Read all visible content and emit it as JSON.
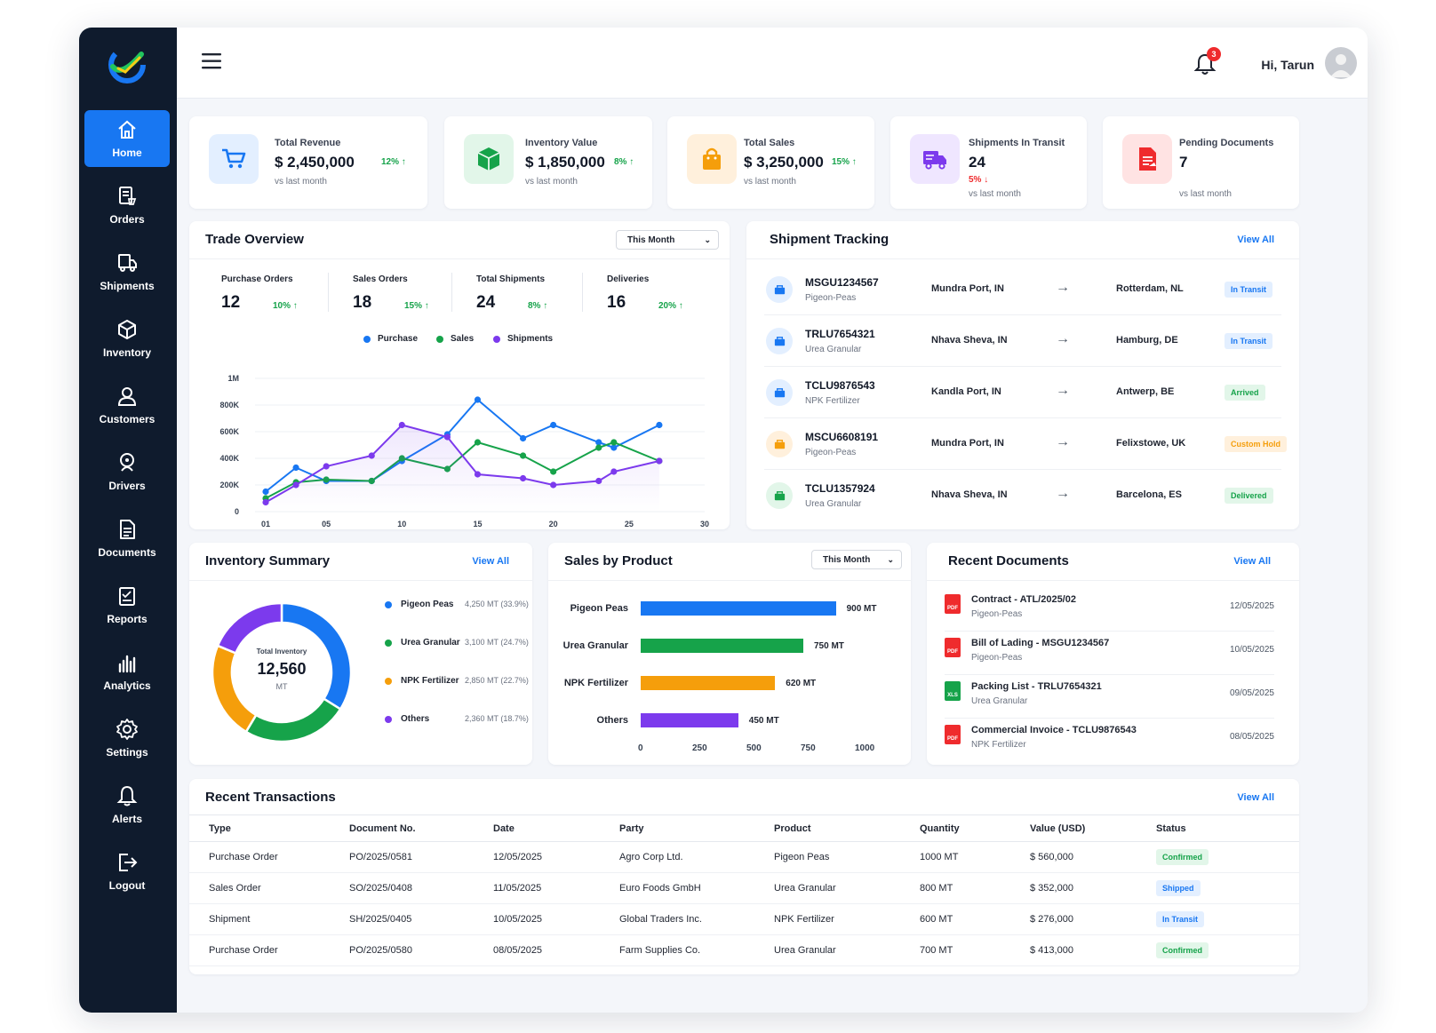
{
  "user": {
    "greeting": "Hi, Tarun",
    "notifications": "3"
  },
  "sidebar": [
    {
      "label": "Home",
      "icon": "home-icon"
    },
    {
      "label": "Orders",
      "icon": "orders-icon"
    },
    {
      "label": "Shipments",
      "icon": "truck-icon"
    },
    {
      "label": "Inventory",
      "icon": "box-icon"
    },
    {
      "label": "Customers",
      "icon": "user-icon"
    },
    {
      "label": "Drivers",
      "icon": "driver-icon"
    },
    {
      "label": "Documents",
      "icon": "document-icon"
    },
    {
      "label": "Reports",
      "icon": "report-icon"
    },
    {
      "label": "Analytics",
      "icon": "analytics-icon"
    },
    {
      "label": "Settings",
      "icon": "gear-icon"
    },
    {
      "label": "Alerts",
      "icon": "bell-icon"
    },
    {
      "label": "Logout",
      "icon": "logout-icon"
    }
  ],
  "kpis": [
    {
      "label": "Total Revenue",
      "value": "$ 2,450,000",
      "change": "12% ↑",
      "sub": "vs last month",
      "color": "#1877f2"
    },
    {
      "label": "Inventory Value",
      "value": "$ 1,850,000",
      "change": "8% ↑",
      "sub": "vs last month",
      "color": "#16a34a"
    },
    {
      "label": "Total Sales",
      "value": "$ 3,250,000",
      "change": "15% ↑",
      "sub": "vs last month",
      "color": "#f59e0b"
    },
    {
      "label": "Shipments In Transit",
      "value": "24",
      "change": "5% ↓",
      "sub": "vs last month",
      "color": "#7c3aed"
    },
    {
      "label": "Pending Documents",
      "value": "7",
      "change": "",
      "sub": "vs last month",
      "color": "#ef2b2d"
    }
  ],
  "trade": {
    "title": "Trade Overview",
    "filter": "This Month",
    "stats": [
      {
        "label": "Purchase Orders",
        "value": "12",
        "change": "10% ↑"
      },
      {
        "label": "Sales Orders",
        "value": "18",
        "change": "15% ↑"
      },
      {
        "label": "Total Shipments",
        "value": "24",
        "change": "8% ↑"
      },
      {
        "label": "Deliveries",
        "value": "16",
        "change": "20% ↑"
      }
    ]
  },
  "chart_data": [
    {
      "type": "line",
      "x": [
        1,
        3,
        5,
        8,
        10,
        13,
        15,
        18,
        20,
        23,
        24,
        27
      ],
      "x_ticks": [
        "01",
        "05",
        "10",
        "15",
        "20",
        "25",
        "30"
      ],
      "x_tick_values": [
        1,
        5,
        10,
        15,
        20,
        25,
        30
      ],
      "y_ticks": [
        "0",
        "200K",
        "400K",
        "600K",
        "800K",
        "1M"
      ],
      "ylim": [
        0,
        1000000
      ],
      "xlim": [
        1,
        30
      ],
      "legend_position": "top",
      "series": [
        {
          "name": "Purchase",
          "color": "#1877f2",
          "values": [
            150000,
            330000,
            230000,
            230000,
            380000,
            580000,
            840000,
            550000,
            650000,
            520000,
            480000,
            650000
          ]
        },
        {
          "name": "Sales",
          "color": "#16a34a",
          "values": [
            100000,
            220000,
            240000,
            230000,
            400000,
            320000,
            520000,
            420000,
            300000,
            480000,
            520000,
            380000
          ]
        },
        {
          "name": "Shipments",
          "color": "#7c3aed",
          "values": [
            70000,
            200000,
            340000,
            420000,
            650000,
            560000,
            280000,
            250000,
            200000,
            230000,
            300000,
            380000
          ]
        }
      ]
    },
    {
      "type": "donut",
      "title": "Inventory Summary",
      "center_label": "Total Inventory",
      "center_value": "12,560",
      "center_unit": "MT",
      "series": [
        {
          "name": "Pigeon Peas",
          "display": "4,250 MT (33.9%)",
          "value": 33.9,
          "color": "#1877f2"
        },
        {
          "name": "Urea Granular",
          "display": "3,100 MT (24.7%)",
          "value": 24.7,
          "color": "#16a34a"
        },
        {
          "name": "NPK Fertilizer",
          "display": "2,850 MT (22.7%)",
          "value": 22.7,
          "color": "#f59e0b"
        },
        {
          "name": "Others",
          "display": "2,360 MT (18.7%)",
          "value": 18.7,
          "color": "#7c3aed"
        }
      ]
    },
    {
      "type": "bar",
      "title": "Sales by Product",
      "orientation": "horizontal",
      "categories": [
        "Pigeon Peas",
        "Urea Granular",
        "NPK Fertilizer",
        "Others"
      ],
      "values": [
        900,
        750,
        620,
        450
      ],
      "value_labels": [
        "900 MT",
        "750 MT",
        "620 MT",
        "450 MT"
      ],
      "colors": [
        "#1877f2",
        "#16a34a",
        "#f59e0b",
        "#7c3aed"
      ],
      "x_ticks": [
        "0",
        "250",
        "500",
        "750",
        "1000"
      ],
      "xlim": [
        0,
        1000
      ]
    }
  ],
  "shipments": {
    "title": "Shipment Tracking",
    "view_all": "View All",
    "rows": [
      {
        "id": "MSGU1234567",
        "product": "Pigeon-Peas",
        "from": "Mundra Port, IN",
        "to": "Rotterdam, NL",
        "status": "In Transit",
        "cls": "b-transit",
        "iconbg": "#e3efff",
        "iconfg": "#1877f2"
      },
      {
        "id": "TRLU7654321",
        "product": "Urea Granular",
        "from": "Nhava Sheva, IN",
        "to": "Hamburg, DE",
        "status": "In Transit",
        "cls": "b-transit",
        "iconbg": "#e3efff",
        "iconfg": "#1877f2"
      },
      {
        "id": "TCLU9876543",
        "product": "NPK Fertilizer",
        "from": "Kandla Port, IN",
        "to": "Antwerp, BE",
        "status": "Arrived",
        "cls": "b-arrived",
        "iconbg": "#e3efff",
        "iconfg": "#1877f2"
      },
      {
        "id": "MSCU6608191",
        "product": "Pigeon-Peas",
        "from": "Mundra Port, IN",
        "to": "Felixstowe, UK",
        "status": "Custom Hold",
        "cls": "b-hold",
        "iconbg": "#fff0dc",
        "iconfg": "#f59e0b"
      },
      {
        "id": "TCLU1357924",
        "product": "Urea Granular",
        "from": "Nhava Sheva, IN",
        "to": "Barcelona, ES",
        "status": "Delivered",
        "cls": "b-delivered",
        "iconbg": "#e2f6e9",
        "iconfg": "#16a34a"
      }
    ]
  },
  "inventory": {
    "title": "Inventory Summary",
    "view_all": "View All"
  },
  "sales": {
    "title": "Sales by Product",
    "filter": "This Month"
  },
  "documents": {
    "title": "Recent Documents",
    "view_all": "View All",
    "rows": [
      {
        "title": "Contract - ATL/2025/02",
        "sub": "Pigeon-Peas",
        "date": "12/05/2025",
        "type": "PDF",
        "color": "#ef2b2d"
      },
      {
        "title": "Bill of Lading - MSGU1234567",
        "sub": "Pigeon-Peas",
        "date": "10/05/2025",
        "type": "PDF",
        "color": "#ef2b2d"
      },
      {
        "title": "Packing List - TRLU7654321",
        "sub": "Urea Granular",
        "date": "09/05/2025",
        "type": "XLS",
        "color": "#16a34a"
      },
      {
        "title": "Commercial Invoice - TCLU9876543",
        "sub": "NPK Fertilizer",
        "date": "08/05/2025",
        "type": "PDF",
        "color": "#ef2b2d"
      }
    ]
  },
  "transactions": {
    "title": "Recent Transactions",
    "view_all": "View All",
    "headers": [
      "Type",
      "Document No.",
      "Date",
      "Party",
      "Product",
      "Quantity",
      "Value (USD)",
      "Status"
    ],
    "rows": [
      {
        "type": "Purchase Order",
        "doc": "PO/2025/0581",
        "date": "12/05/2025",
        "party": "Agro Corp Ltd.",
        "product": "Pigeon Peas",
        "qty": "1000 MT",
        "value": "$ 560,000",
        "status": "Confirmed",
        "cls": "b-confirmed"
      },
      {
        "type": "Sales Order",
        "doc": "SO/2025/0408",
        "date": "11/05/2025",
        "party": "Euro Foods GmbH",
        "product": "Urea Granular",
        "qty": "800 MT",
        "value": "$ 352,000",
        "status": "Shipped",
        "cls": "b-shipped"
      },
      {
        "type": "Shipment",
        "doc": "SH/2025/0405",
        "date": "10/05/2025",
        "party": "Global Traders Inc.",
        "product": "NPK Fertilizer",
        "qty": "600 MT",
        "value": "$ 276,000",
        "status": "In Transit",
        "cls": "b-transit"
      },
      {
        "type": "Purchase Order",
        "doc": "PO/2025/0580",
        "date": "08/05/2025",
        "party": "Farm Supplies Co.",
        "product": "Urea Granular",
        "qty": "700 MT",
        "value": "$ 413,000",
        "status": "Confirmed",
        "cls": "b-confirmed"
      }
    ]
  }
}
